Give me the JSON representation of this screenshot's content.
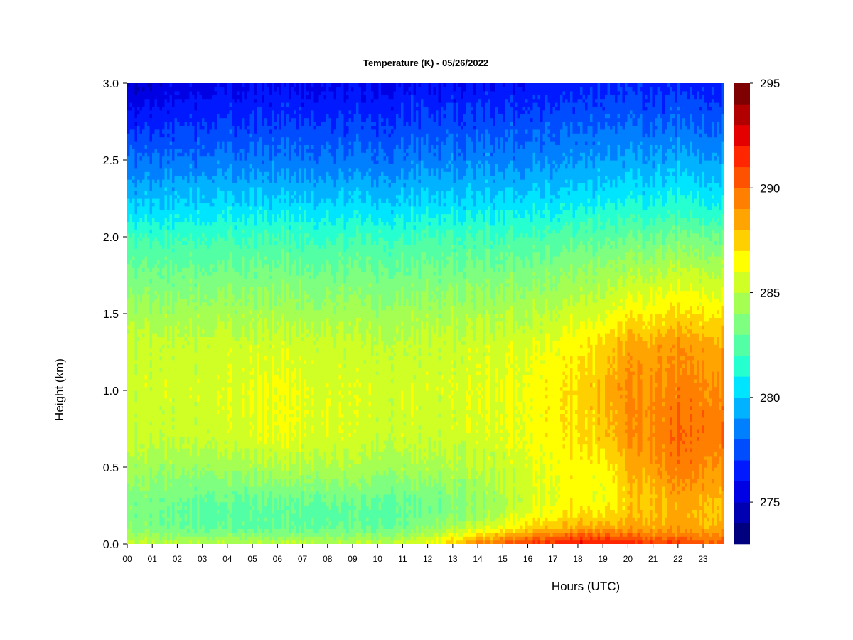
{
  "chart_data": {
    "type": "heatmap",
    "title": "Temperature (K) - 05/26/2022",
    "xlabel": "Hours (UTC)",
    "ylabel": "Height (km)",
    "x_ticks": [
      "00",
      "01",
      "02",
      "03",
      "04",
      "05",
      "06",
      "07",
      "08",
      "09",
      "10",
      "11",
      "12",
      "13",
      "14",
      "15",
      "16",
      "17",
      "18",
      "19",
      "20",
      "21",
      "22",
      "23"
    ],
    "x_tick_values": [
      0,
      1,
      2,
      3,
      4,
      5,
      6,
      7,
      8,
      9,
      10,
      11,
      12,
      13,
      14,
      15,
      16,
      17,
      18,
      19,
      20,
      21,
      22,
      23
    ],
    "xlim": [
      0,
      23.85
    ],
    "y_ticks": [
      "0.0",
      "0.5",
      "1.0",
      "1.5",
      "2.0",
      "2.5",
      "3.0"
    ],
    "y_tick_values": [
      0.0,
      0.5,
      1.0,
      1.5,
      2.0,
      2.5,
      3.0
    ],
    "ylim": [
      0.0,
      3.0
    ],
    "colorbar": {
      "label_values": [
        275,
        280,
        285,
        290,
        295
      ],
      "labels": [
        "275",
        "280",
        "285",
        "290",
        "295"
      ],
      "range": [
        273,
        295
      ],
      "levels": [
        273,
        274,
        275,
        276,
        277,
        278,
        279,
        280,
        281,
        282,
        283,
        284,
        285,
        286,
        287,
        288,
        289,
        290,
        291,
        292,
        293,
        294,
        295
      ],
      "colors": [
        "#00007f",
        "#0000b2",
        "#0000e5",
        "#0019ff",
        "#004cff",
        "#007fff",
        "#00b2ff",
        "#00e5ff",
        "#26ffd0",
        "#52ffa4",
        "#7fff7f",
        "#a4ff52",
        "#d0ff26",
        "#ffff00",
        "#ffd000",
        "#ffa400",
        "#ff7f00",
        "#ff5200",
        "#ff2600",
        "#e50000",
        "#b20000",
        "#7f0000"
      ]
    },
    "profile_heights_km": [
      0.0,
      0.05,
      0.1,
      0.2,
      0.3,
      0.5,
      0.7,
      1.0,
      1.3,
      1.5,
      1.8,
      2.0,
      2.2,
      2.5,
      2.8,
      3.0
    ],
    "profiles": [
      {
        "hour": 0,
        "temps": [
          285.5,
          284.5,
          283.8,
          283.5,
          283.5,
          284.5,
          285.3,
          285.5,
          285.2,
          284.5,
          283.0,
          281.8,
          280.0,
          278.0,
          276.0,
          274.5
        ]
      },
      {
        "hour": 2,
        "temps": [
          285.0,
          284.0,
          283.2,
          283.0,
          283.2,
          284.3,
          285.3,
          285.6,
          285.3,
          284.5,
          283.0,
          282.0,
          280.3,
          278.3,
          276.6,
          275.5
        ]
      },
      {
        "hour": 4,
        "temps": [
          285.0,
          284.0,
          282.8,
          282.6,
          283.0,
          284.3,
          285.5,
          285.8,
          285.4,
          284.6,
          283.1,
          282.0,
          280.4,
          278.4,
          276.8,
          275.8
        ]
      },
      {
        "hour": 6,
        "temps": [
          285.0,
          284.0,
          282.8,
          282.6,
          283.0,
          284.8,
          286.0,
          286.3,
          285.5,
          284.6,
          283.1,
          282.0,
          280.4,
          278.4,
          276.8,
          275.8
        ]
      },
      {
        "hour": 8,
        "temps": [
          285.0,
          284.0,
          283.0,
          282.6,
          283.2,
          284.8,
          285.8,
          285.8,
          285.4,
          284.5,
          283.0,
          281.9,
          280.3,
          278.3,
          276.8,
          275.8
        ]
      },
      {
        "hour": 10,
        "temps": [
          285.0,
          284.0,
          283.0,
          282.6,
          283.0,
          284.5,
          285.4,
          285.6,
          285.2,
          284.4,
          283.0,
          281.9,
          280.3,
          278.3,
          276.8,
          275.8
        ]
      },
      {
        "hour": 12,
        "temps": [
          286.0,
          285.0,
          283.8,
          283.2,
          283.3,
          284.5,
          285.4,
          285.6,
          285.3,
          284.5,
          283.1,
          282.0,
          280.4,
          278.5,
          277.0,
          276.0
        ]
      },
      {
        "hour": 14,
        "temps": [
          289.5,
          287.5,
          285.5,
          284.0,
          284.0,
          285.0,
          285.6,
          285.8,
          285.5,
          284.6,
          283.2,
          282.1,
          280.5,
          278.6,
          277.1,
          276.1
        ]
      },
      {
        "hour": 16,
        "temps": [
          291.0,
          289.5,
          287.5,
          286.0,
          285.5,
          285.8,
          286.2,
          286.3,
          285.8,
          284.9,
          283.4,
          282.2,
          280.6,
          278.7,
          277.2,
          276.2
        ]
      },
      {
        "hour": 18,
        "temps": [
          292.0,
          290.5,
          288.5,
          287.0,
          286.5,
          286.5,
          287.0,
          287.2,
          286.6,
          285.4,
          283.8,
          282.5,
          280.8,
          278.9,
          277.4,
          276.4
        ]
      },
      {
        "hour": 19,
        "temps": [
          292.0,
          290.5,
          288.5,
          287.0,
          286.0,
          286.3,
          287.5,
          288.0,
          287.2,
          285.8,
          284.0,
          282.6,
          280.9,
          279.0,
          277.5,
          276.5
        ]
      },
      {
        "hour": 20,
        "temps": [
          291.5,
          290.0,
          288.5,
          287.5,
          287.5,
          288.0,
          288.8,
          289.0,
          288.3,
          286.5,
          284.4,
          282.9,
          281.1,
          279.2,
          277.6,
          276.6
        ]
      },
      {
        "hour": 22,
        "temps": [
          291.0,
          289.8,
          288.8,
          288.3,
          288.5,
          289.5,
          290.0,
          289.5,
          288.8,
          287.2,
          285.0,
          283.3,
          281.4,
          279.4,
          277.7,
          276.7
        ]
      },
      {
        "hour": 23.85,
        "temps": [
          290.5,
          289.5,
          288.5,
          288.0,
          288.2,
          289.2,
          289.8,
          289.3,
          288.5,
          287.0,
          284.8,
          283.2,
          281.3,
          279.3,
          277.6,
          276.6
        ]
      }
    ]
  }
}
